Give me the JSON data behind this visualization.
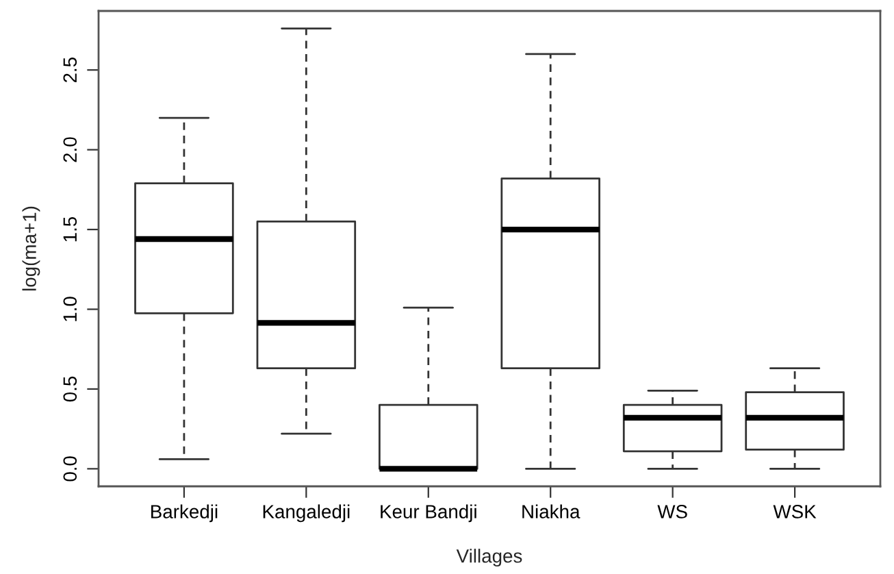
{
  "chart_data": {
    "type": "box",
    "xlabel": "Villages",
    "ylabel": "log(ma+1)",
    "categories": [
      "Barkedji",
      "Kangaledji",
      "Keur Bandji",
      "Niakha",
      "WS",
      "WSK"
    ],
    "boxes": [
      {
        "low": 0.06,
        "q1": 0.975,
        "median": 1.44,
        "q3": 1.79,
        "high": 2.2
      },
      {
        "low": 0.22,
        "q1": 0.63,
        "median": 0.915,
        "q3": 1.55,
        "high": 2.76
      },
      {
        "low": 0,
        "q1": 0,
        "median": 0,
        "q3": 0.4,
        "high": 1.01
      },
      {
        "low": 0,
        "q1": 0.63,
        "median": 1.5,
        "q3": 1.82,
        "high": 2.6
      },
      {
        "low": 0,
        "q1": 0.11,
        "median": 0.32,
        "q3": 0.4,
        "high": 0.49
      },
      {
        "low": 0,
        "q1": 0.12,
        "median": 0.32,
        "q3": 0.48,
        "high": 0.63
      }
    ],
    "ylim": [
      -0.11,
      2.87
    ],
    "yticks": [
      {
        "value": 0,
        "label": "0.0"
      },
      {
        "value": 0.5,
        "label": "0.5"
      },
      {
        "value": 1,
        "label": "1.0"
      },
      {
        "value": 1.5,
        "label": "1.5"
      },
      {
        "value": 2,
        "label": "2.0"
      },
      {
        "value": 2.5,
        "label": "2.5"
      }
    ],
    "grid": false
  }
}
